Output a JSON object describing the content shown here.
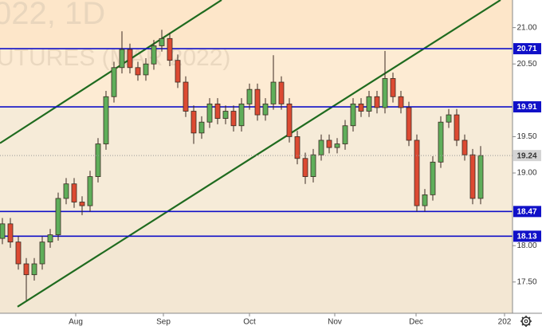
{
  "chart_data": {
    "type": "candlestick",
    "watermark": [
      "022, 1D",
      "UTURES (MAR 2022)"
    ],
    "open": [
      18.1,
      18.3,
      18.05,
      17.75,
      17.6,
      17.75,
      18.05,
      18.15,
      18.65,
      18.85,
      18.6,
      18.55,
      18.95,
      19.4,
      20.05,
      20.45,
      20.7,
      20.45,
      20.35,
      20.5,
      20.75,
      20.85,
      20.55,
      20.25,
      19.85,
      19.55,
      19.7,
      19.95,
      19.75,
      19.85,
      19.65,
      19.95,
      20.15,
      19.8,
      19.95,
      20.25,
      19.95,
      19.5,
      19.2,
      18.95,
      19.25,
      19.45,
      19.35,
      19.4,
      19.65,
      19.95,
      19.85,
      20.05,
      19.9,
      20.3,
      20.05,
      19.9,
      19.45,
      18.55,
      18.7,
      19.15,
      19.7,
      19.8,
      19.45,
      19.25,
      18.65
    ],
    "high": [
      18.38,
      18.38,
      18.13,
      17.83,
      17.83,
      18.13,
      18.23,
      18.73,
      18.93,
      18.93,
      18.68,
      19.03,
      19.48,
      20.13,
      20.53,
      20.95,
      20.78,
      20.53,
      20.58,
      20.83,
      20.97,
      20.93,
      20.63,
      20.33,
      19.93,
      19.78,
      20.03,
      20.03,
      19.93,
      19.93,
      20.03,
      20.23,
      20.23,
      20.03,
      20.62,
      20.33,
      20.03,
      19.58,
      19.28,
      19.33,
      19.53,
      19.53,
      19.48,
      19.73,
      20.03,
      20.03,
      20.13,
      20.13,
      20.68,
      20.38,
      20.13,
      19.98,
      19.53,
      18.78,
      19.23,
      19.78,
      19.88,
      19.88,
      19.53,
      19.33,
      19.37
    ],
    "low": [
      18.02,
      17.97,
      17.67,
      17.25,
      17.52,
      17.67,
      17.97,
      18.07,
      18.57,
      18.52,
      18.42,
      18.47,
      18.87,
      19.32,
      19.97,
      20.37,
      20.37,
      20.27,
      20.27,
      20.42,
      20.67,
      20.47,
      20.17,
      19.77,
      19.4,
      19.47,
      19.62,
      19.67,
      19.67,
      19.57,
      19.57,
      19.87,
      19.72,
      19.72,
      19.87,
      19.87,
      19.42,
      19.12,
      18.85,
      18.87,
      19.17,
      19.27,
      19.27,
      19.32,
      19.57,
      19.77,
      19.77,
      19.82,
      19.82,
      19.97,
      19.82,
      19.37,
      18.47,
      18.47,
      18.62,
      19.07,
      19.62,
      19.37,
      19.17,
      18.57,
      18.57
    ],
    "close": [
      18.3,
      18.05,
      17.75,
      17.6,
      17.75,
      18.05,
      18.15,
      18.65,
      18.85,
      18.6,
      18.55,
      18.95,
      19.4,
      20.05,
      20.45,
      20.7,
      20.45,
      20.35,
      20.5,
      20.75,
      20.85,
      20.55,
      20.25,
      19.85,
      19.55,
      19.7,
      19.95,
      19.75,
      19.85,
      19.65,
      19.95,
      20.15,
      19.8,
      19.95,
      20.25,
      19.95,
      19.5,
      19.2,
      18.95,
      19.25,
      19.45,
      19.35,
      19.4,
      19.65,
      19.95,
      19.85,
      20.05,
      19.9,
      20.3,
      20.05,
      19.9,
      19.45,
      18.55,
      18.7,
      19.15,
      19.7,
      19.8,
      19.45,
      19.25,
      18.65,
      19.24
    ],
    "up_color": "#5fae5a",
    "down_color": "#dc4a32",
    "xlim": [
      -0.3,
      64.0
    ],
    "xticks": [
      {
        "value": 9.2,
        "label": "Aug"
      },
      {
        "value": 20.2,
        "label": "Sep"
      },
      {
        "value": 31.0,
        "label": "Oct"
      },
      {
        "value": 41.7,
        "label": "Nov"
      },
      {
        "value": 51.9,
        "label": "Dec"
      },
      {
        "value": 63.0,
        "label": "202"
      }
    ],
    "ylim": [
      17.07,
      21.38
    ],
    "yticks": [
      {
        "value": 17.5,
        "label": "17.50"
      },
      {
        "value": 18,
        "label": "18.00"
      },
      {
        "value": 19,
        "label": "19.00"
      },
      {
        "value": 19.5,
        "label": "19.50"
      },
      {
        "value": 20.5,
        "label": "20.50"
      },
      {
        "value": 21,
        "label": "21.00"
      }
    ],
    "levels": [
      20.71,
      19.91,
      18.47,
      18.13
    ],
    "level_color": "#1010c8",
    "trend_lines": [
      {
        "x": [
          -0.3,
          27.5
        ],
        "y": [
          19.41,
          21.38
        ]
      },
      {
        "x": [
          1.9,
          62.5
        ],
        "y": [
          17.16,
          21.38
        ]
      }
    ],
    "trend_color": "#1f6b1f"
  }
}
